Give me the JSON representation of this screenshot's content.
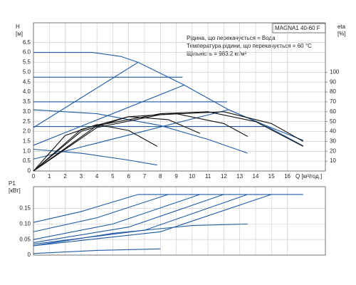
{
  "chart_data": [
    {
      "type": "line",
      "title": "MAGNA1 40-60 F",
      "annotations": [
        "Рідина, що перекачується = Вода",
        "Температура рідини, що перекачується = 60 °C",
        "Щільність = 983.2 кг/м³"
      ],
      "ylabel": "H",
      "yunit": "[м]",
      "y2label": "eta",
      "y2unit": "[%]",
      "xlabel": "Q [м³/год.]",
      "xlim": [
        0,
        18.4
      ],
      "xticks": [
        0,
        1,
        2,
        3,
        4,
        5,
        6,
        7,
        8,
        9,
        10,
        11,
        12,
        13,
        14,
        15,
        16
      ],
      "ylim": [
        0,
        7.5
      ],
      "yticks": [
        0,
        0.5,
        {
          "value": 1,
          "label": "1.0"
        },
        1.5,
        {
          "value": 2,
          "label": "2.0"
        },
        2.5,
        {
          "value": 3,
          "label": "3.0"
        },
        3.5,
        {
          "value": 4,
          "label": "4.0"
        },
        4.5,
        {
          "value": 5,
          "label": "5.0"
        },
        5.5,
        {
          "value": 6,
          "label": "6.0"
        },
        6.5
      ],
      "y2lim": [
        0,
        150
      ],
      "y2ticks": [
        10,
        20,
        30,
        40,
        50,
        60,
        70,
        80,
        90,
        100
      ],
      "grid": true,
      "series": [
        {
          "color": "#1f5aa6",
          "x": [
            0,
            3.7,
            5.5,
            6.6,
            9.5,
            12.3,
            14.5,
            17
          ],
          "values": [
            6.0,
            6.0,
            5.8,
            5.5,
            4.35,
            3.1,
            2.35,
            1.55
          ]
        },
        {
          "color": "#1f5aa6",
          "x": [
            0,
            9.4
          ],
          "values": [
            4.75,
            4.75
          ]
        },
        {
          "color": "#1f5aa6",
          "x": [
            0,
            12.2
          ],
          "values": [
            3.5,
            3.5
          ]
        },
        {
          "color": "#1f5aa6",
          "x": [
            0,
            14.8
          ],
          "values": [
            2.25,
            2.25
          ]
        },
        {
          "color": "#1f5aa6",
          "x": [
            0,
            6.6
          ],
          "values": [
            2.2,
            5.5
          ]
        },
        {
          "color": "#1f5aa6",
          "x": [
            0,
            9.5
          ],
          "values": [
            1.3,
            4.35
          ]
        },
        {
          "color": "#1f5aa6",
          "x": [
            0,
            12.3
          ],
          "values": [
            0.6,
            3.1
          ]
        },
        {
          "color": "#1f5aa6",
          "x": [
            12.3,
            14.5,
            17
          ],
          "values": [
            3.1,
            2.35,
            1.27
          ]
        },
        {
          "color": "#1f5aa6",
          "x": [
            0,
            4,
            8,
            11,
            13.5
          ],
          "values": [
            3.1,
            2.9,
            2.3,
            1.6,
            0.9
          ]
        },
        {
          "color": "#1f5aa6",
          "x": [
            0,
            3,
            6,
            7.8
          ],
          "values": [
            1.1,
            0.9,
            0.55,
            0.3
          ]
        },
        {
          "color": "#111111",
          "axis": "y2",
          "x": [
            0,
            2,
            4,
            6,
            7.8
          ],
          "values": [
            0,
            36,
            47,
            41,
            25
          ]
        },
        {
          "color": "#111111",
          "axis": "y2",
          "x": [
            0,
            3,
            6,
            8.5,
            10.5
          ],
          "values": [
            0,
            42,
            55,
            52,
            38
          ]
        },
        {
          "color": "#111111",
          "axis": "y2",
          "x": [
            0,
            3,
            6,
            9,
            12,
            13.5
          ],
          "values": [
            0,
            40,
            55,
            58,
            48,
            35
          ]
        },
        {
          "color": "#111111",
          "axis": "y2",
          "x": [
            0,
            4,
            8,
            11,
            14,
            17
          ],
          "values": [
            0,
            46,
            58,
            60,
            50,
            25
          ]
        },
        {
          "color": "#111111",
          "axis": "y2",
          "x": [
            0,
            4,
            8,
            12,
            15,
            17
          ],
          "values": [
            0,
            44,
            57,
            60,
            48,
            30
          ]
        }
      ]
    },
    {
      "type": "line",
      "ylabel": "P1",
      "yunit": "[кВт]",
      "xlim": [
        0,
        18.4
      ],
      "xticks": [
        0,
        1,
        2,
        3,
        4,
        5,
        6,
        7,
        8,
        9,
        10,
        11,
        12,
        13,
        14,
        15,
        16
      ],
      "ylim": [
        0,
        0.22
      ],
      "yticks": [
        0,
        0.05,
        {
          "value": 0.1,
          "label": "0.10"
        },
        0.15
      ],
      "grid": true,
      "series": [
        {
          "color": "#1f5aa6",
          "x": [
            6.6,
            17
          ],
          "values": [
            0.195,
            0.195
          ]
        },
        {
          "color": "#1f5aa6",
          "x": [
            0,
            3,
            6.6
          ],
          "values": [
            0.105,
            0.14,
            0.195
          ]
        },
        {
          "color": "#1f5aa6",
          "x": [
            0,
            4,
            8.5
          ],
          "values": [
            0.075,
            0.12,
            0.195
          ]
        },
        {
          "color": "#1f5aa6",
          "x": [
            0,
            5,
            10.5
          ],
          "values": [
            0.05,
            0.1,
            0.195
          ]
        },
        {
          "color": "#1f5aa6",
          "x": [
            0,
            6,
            12
          ],
          "values": [
            0.04,
            0.09,
            0.195
          ]
        },
        {
          "color": "#1f5aa6",
          "x": [
            0,
            7,
            13.5
          ],
          "values": [
            0.035,
            0.08,
            0.195
          ]
        },
        {
          "color": "#1f5aa6",
          "x": [
            0,
            8,
            15
          ],
          "values": [
            0.03,
            0.075,
            0.195
          ]
        },
        {
          "color": "#1f5aa6",
          "x": [
            0,
            5,
            10,
            13.5
          ],
          "values": [
            0.03,
            0.07,
            0.095,
            0.1
          ]
        },
        {
          "color": "#1f5aa6",
          "x": [
            0,
            4,
            8
          ],
          "values": [
            0.005,
            0.015,
            0.02
          ]
        }
      ]
    }
  ]
}
